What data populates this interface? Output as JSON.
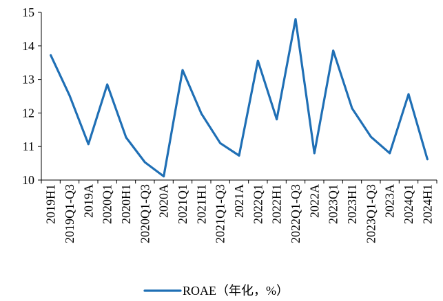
{
  "chart_data": {
    "type": "line",
    "title": "",
    "xlabel": "",
    "ylabel": "",
    "ylim": [
      10,
      15
    ],
    "yticks": [
      "10",
      "11",
      "12",
      "13",
      "14",
      "15"
    ],
    "grid": false,
    "legend_position": "bottom",
    "categories": [
      "2019H1",
      "2019Q1-Q3",
      "2019A",
      "2020Q1",
      "2020H1",
      "2020Q1-Q3",
      "2020A",
      "2021Q1",
      "2021H1",
      "2021Q1-Q3",
      "2021A",
      "2022Q1",
      "2022H1",
      "2022Q1-Q3",
      "2022A",
      "2023Q1",
      "2023H1",
      "2023Q1-Q3",
      "2023A",
      "2024Q1",
      "2024H1"
    ],
    "series": [
      {
        "name": "ROAE（年化，%）",
        "color": "#1f6fb5",
        "values": [
          13.72,
          12.52,
          11.07,
          12.85,
          11.27,
          10.53,
          10.11,
          13.28,
          11.98,
          11.1,
          10.73,
          13.56,
          11.81,
          14.8,
          10.8,
          13.86,
          12.14,
          11.29,
          10.8,
          12.56,
          10.62
        ]
      }
    ]
  }
}
